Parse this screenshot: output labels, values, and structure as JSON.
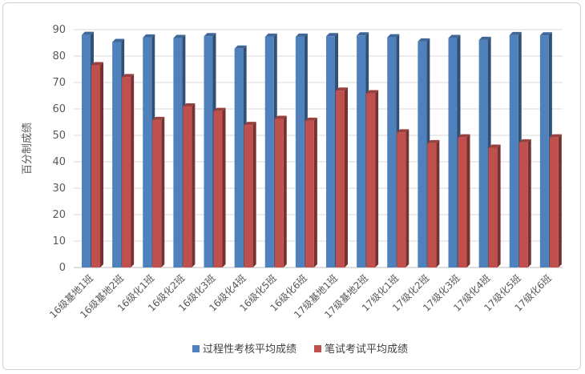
{
  "chart_data": {
    "type": "bar",
    "ylabel": "百分制成绩",
    "ylim": [
      0,
      90
    ],
    "yticks": [
      0,
      10,
      20,
      30,
      40,
      50,
      60,
      70,
      80,
      90
    ],
    "grid": true,
    "legend": "bottom",
    "categories": [
      "16级基地1班",
      "16级基地2班",
      "16级化1班",
      "16级化2班",
      "16级化3班",
      "16级化4班",
      "16级化5班",
      "16级化6班",
      "17级基地1班",
      "17级基地2班",
      "17级化1班",
      "17级化2班",
      "17级化3班",
      "17级化4班",
      "17级化5班",
      "17级化6班"
    ],
    "series": [
      {
        "name": "过程性考核平均成绩",
        "color": "#4f81bd",
        "values": [
          88,
          85.3,
          87,
          86.8,
          87.5,
          82.8,
          87.3,
          87.3,
          87.5,
          87.8,
          87.1,
          85.5,
          86.8,
          86.1,
          87.9,
          87.8
        ]
      },
      {
        "name": "笔试考试平均成绩",
        "color": "#c0504d",
        "values": [
          76.5,
          72,
          55.8,
          60.9,
          59.2,
          53.9,
          56.2,
          55.5,
          66.9,
          65.9,
          51.1,
          47,
          49.2,
          45.3,
          47.3,
          49.2
        ]
      }
    ]
  }
}
